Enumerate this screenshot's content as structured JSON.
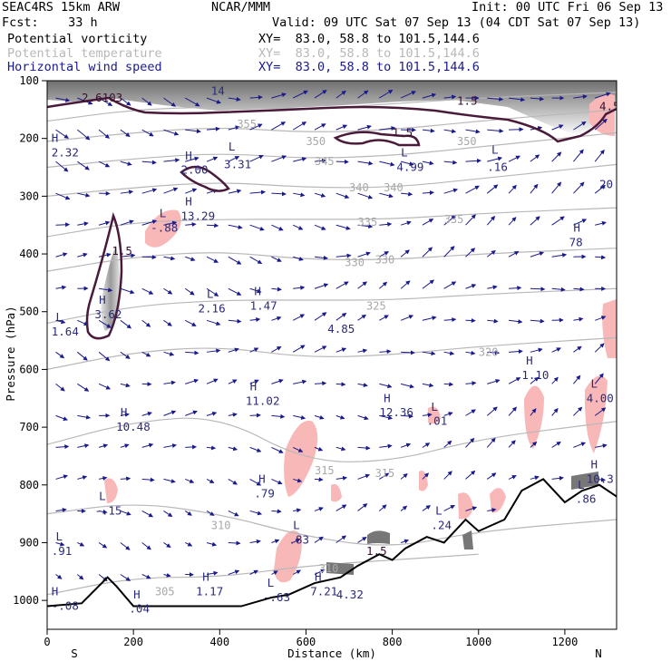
{
  "header": {
    "model": "SEAC4RS 15km ARW",
    "forecast": "Fcst:    33 h",
    "center": "NCAR/MMM",
    "init": "Init: 00 UTC Fri 06 Sep 13",
    "valid": "Valid: 09 UTC Sat 07 Sep 13 (04 CDT Sat 07 Sep 13)",
    "fields": [
      {
        "name": "Potential vorticity",
        "xy": "XY=  83.0, 58.8 to 101.5,144.6",
        "color": "#000000"
      },
      {
        "name": "Potential temperature",
        "xy": "XY=  83.0, 58.8 to 101.5,144.6",
        "color": "#b8b8b8"
      },
      {
        "name": "Horizontal wind speed",
        "xy": "XY=  83.0, 58.8 to 101.5,144.6",
        "color": "#1a1a8c"
      }
    ]
  },
  "colors": {
    "wind_arrow": "#1a1a8c",
    "theta_line": "#b8b8b8",
    "pv_contour": "#4a1a3a",
    "pv_positive_fill": "#f8b8b8",
    "terrain": "#000000",
    "annotation": "#2a2a7a"
  },
  "chart_data": {
    "type": "cross-section",
    "xlabel": "Distance (km)",
    "ylabel": "Pressure (hPa)",
    "xlim": [
      0,
      1320
    ],
    "ylim": [
      1050,
      100
    ],
    "x_ticks": [
      0,
      200,
      400,
      600,
      800,
      1000,
      1200
    ],
    "y_ticks": [
      100,
      200,
      300,
      400,
      500,
      600,
      700,
      800,
      900,
      1000
    ],
    "ends": {
      "left": "S",
      "right": "N"
    },
    "theta_contours": [
      {
        "theta": 355,
        "points": [
          [
            0,
            170
          ],
          [
            200,
            150
          ],
          [
            400,
            145
          ],
          [
            600,
            150
          ],
          [
            800,
            140
          ],
          [
            1000,
            130
          ],
          [
            1320,
            120
          ]
        ]
      },
      {
        "theta": 350,
        "points": [
          [
            0,
            205
          ],
          [
            200,
            190
          ],
          [
            400,
            180
          ],
          [
            600,
            190
          ],
          [
            800,
            185
          ],
          [
            1000,
            170
          ],
          [
            1320,
            150
          ]
        ]
      },
      {
        "theta": 345,
        "points": [
          [
            0,
            250
          ],
          [
            200,
            235
          ],
          [
            400,
            225
          ],
          [
            600,
            235
          ],
          [
            800,
            230
          ],
          [
            1000,
            215
          ],
          [
            1320,
            190
          ]
        ]
      },
      {
        "theta": 340,
        "points": [
          [
            0,
            300
          ],
          [
            200,
            285
          ],
          [
            400,
            275
          ],
          [
            600,
            285
          ],
          [
            800,
            285
          ],
          [
            1000,
            270
          ],
          [
            1320,
            245
          ]
        ]
      },
      {
        "theta": 335,
        "points": [
          [
            0,
            370
          ],
          [
            200,
            345
          ],
          [
            400,
            340
          ],
          [
            600,
            340
          ],
          [
            800,
            340
          ],
          [
            1000,
            330
          ],
          [
            1320,
            320
          ]
        ]
      },
      {
        "theta": 330,
        "points": [
          [
            0,
            430
          ],
          [
            200,
            405
          ],
          [
            400,
            395
          ],
          [
            600,
            410
          ],
          [
            800,
            410
          ],
          [
            1000,
            400
          ],
          [
            1320,
            390
          ]
        ]
      },
      {
        "theta": 325,
        "points": [
          [
            0,
            520
          ],
          [
            200,
            490
          ],
          [
            400,
            480
          ],
          [
            600,
            480
          ],
          [
            800,
            480
          ],
          [
            1000,
            470
          ],
          [
            1320,
            460
          ]
        ]
      },
      {
        "theta": 320,
        "points": [
          [
            0,
            600
          ],
          [
            200,
            570
          ],
          [
            400,
            560
          ],
          [
            600,
            580
          ],
          [
            800,
            575
          ],
          [
            1000,
            560
          ],
          [
            1320,
            545
          ]
        ]
      },
      {
        "theta": 315,
        "points": [
          [
            0,
            730
          ],
          [
            200,
            690
          ],
          [
            400,
            680
          ],
          [
            600,
            760
          ],
          [
            800,
            760
          ],
          [
            1000,
            720
          ],
          [
            1320,
            690
          ]
        ]
      },
      {
        "theta": 310,
        "points": [
          [
            0,
            850
          ],
          [
            200,
            830
          ],
          [
            400,
            850
          ],
          [
            600,
            890
          ],
          [
            800,
            910
          ],
          [
            1000,
            880
          ],
          [
            1320,
            860
          ]
        ]
      },
      {
        "theta": 305,
        "points": [
          [
            0,
            990
          ],
          [
            200,
            960
          ],
          [
            400,
            960
          ],
          [
            600,
            940
          ],
          [
            800,
            930
          ],
          [
            1000,
            920
          ]
        ]
      }
    ],
    "terrain_profile": [
      [
        0,
        1010
      ],
      [
        80,
        1005
      ],
      [
        140,
        960
      ],
      [
        160,
        975
      ],
      [
        200,
        1010
      ],
      [
        300,
        1010
      ],
      [
        450,
        1010
      ],
      [
        520,
        995
      ],
      [
        560,
        990
      ],
      [
        620,
        970
      ],
      [
        680,
        960
      ],
      [
        720,
        940
      ],
      [
        770,
        920
      ],
      [
        800,
        930
      ],
      [
        830,
        910
      ],
      [
        880,
        890
      ],
      [
        920,
        900
      ],
      [
        970,
        860
      ],
      [
        1000,
        880
      ],
      [
        1060,
        860
      ],
      [
        1100,
        810
      ],
      [
        1150,
        790
      ],
      [
        1200,
        830
      ],
      [
        1240,
        810
      ],
      [
        1280,
        800
      ],
      [
        1320,
        820
      ]
    ],
    "labels": [
      {
        "text": "H",
        "x": 10,
        "p": 200,
        "kind": "extremum"
      },
      {
        "text": "2.32",
        "x": 10,
        "p": 225,
        "kind": "value"
      },
      {
        "text": "2.6103",
        "x": 80,
        "p": 130,
        "kind": "pv"
      },
      {
        "text": "14",
        "x": 380,
        "p": 118,
        "kind": "value"
      },
      {
        "text": "355",
        "x": 440,
        "p": 175,
        "kind": "theta"
      },
      {
        "text": "H",
        "x": 320,
        "p": 230,
        "kind": "extremum"
      },
      {
        "text": "2.00",
        "x": 310,
        "p": 255,
        "kind": "value"
      },
      {
        "text": "L",
        "x": 420,
        "p": 215,
        "kind": "extremum"
      },
      {
        "text": "3.31",
        "x": 410,
        "p": 245,
        "kind": "value"
      },
      {
        "text": "L",
        "x": 820,
        "p": 225,
        "kind": "extremum"
      },
      {
        "text": "4.99",
        "x": 810,
        "p": 250,
        "kind": "value"
      },
      {
        "text": "L",
        "x": 1030,
        "p": 220,
        "kind": "extremum"
      },
      {
        "text": ".16",
        "x": 1020,
        "p": 250,
        "kind": "value"
      },
      {
        "text": "H",
        "x": 320,
        "p": 310,
        "kind": "extremum"
      },
      {
        "text": "13.29",
        "x": 310,
        "p": 335,
        "kind": "value"
      },
      {
        "text": "L",
        "x": 260,
        "p": 330,
        "kind": "extremum"
      },
      {
        "text": "-.88",
        "x": 240,
        "p": 355,
        "kind": "value"
      },
      {
        "text": "H",
        "x": 1220,
        "p": 355,
        "kind": "extremum"
      },
      {
        "text": "78",
        "x": 1210,
        "p": 380,
        "kind": "value"
      },
      {
        "text": "1.5",
        "x": 150,
        "p": 395,
        "kind": "pv"
      },
      {
        "text": "H",
        "x": 120,
        "p": 480,
        "kind": "extremum"
      },
      {
        "text": "3.62",
        "x": 110,
        "p": 505,
        "kind": "value"
      },
      {
        "text": "L",
        "x": 370,
        "p": 470,
        "kind": "extremum"
      },
      {
        "text": "2.16",
        "x": 350,
        "p": 495,
        "kind": "value"
      },
      {
        "text": "H",
        "x": 480,
        "p": 465,
        "kind": "extremum"
      },
      {
        "text": "1.47",
        "x": 470,
        "p": 490,
        "kind": "value"
      },
      {
        "text": "4.85",
        "x": 650,
        "p": 530,
        "kind": "value"
      },
      {
        "text": "L",
        "x": 20,
        "p": 510,
        "kind": "extremum"
      },
      {
        "text": "1.64",
        "x": 10,
        "p": 535,
        "kind": "value"
      },
      {
        "text": "H",
        "x": 1110,
        "p": 585,
        "kind": "extremum"
      },
      {
        "text": "1.10",
        "x": 1100,
        "p": 610,
        "kind": "value"
      },
      {
        "text": "L",
        "x": 1260,
        "p": 625,
        "kind": "extremum"
      },
      {
        "text": "4.00",
        "x": 1250,
        "p": 650,
        "kind": "value"
      },
      {
        "text": "H",
        "x": 470,
        "p": 630,
        "kind": "extremum"
      },
      {
        "text": "11.02",
        "x": 460,
        "p": 655,
        "kind": "value"
      },
      {
        "text": "H",
        "x": 780,
        "p": 650,
        "kind": "extremum"
      },
      {
        "text": "12.36",
        "x": 770,
        "p": 675,
        "kind": "value"
      },
      {
        "text": "L",
        "x": 890,
        "p": 665,
        "kind": "extremum"
      },
      {
        "text": ".01",
        "x": 880,
        "p": 690,
        "kind": "value"
      },
      {
        "text": "H",
        "x": 170,
        "p": 675,
        "kind": "extremum"
      },
      {
        "text": "10.48",
        "x": 160,
        "p": 700,
        "kind": "value"
      },
      {
        "text": "315",
        "x": 620,
        "p": 775,
        "kind": "theta"
      },
      {
        "text": "315",
        "x": 760,
        "p": 780,
        "kind": "theta"
      },
      {
        "text": "H",
        "x": 1260,
        "p": 765,
        "kind": "extremum"
      },
      {
        "text": "10.3",
        "x": 1250,
        "p": 790,
        "kind": "value"
      },
      {
        "text": "L",
        "x": 1230,
        "p": 800,
        "kind": "extremum"
      },
      {
        "text": ".86",
        "x": 1225,
        "p": 825,
        "kind": "value"
      },
      {
        "text": "H",
        "x": 490,
        "p": 790,
        "kind": "extremum"
      },
      {
        "text": ".79",
        "x": 480,
        "p": 815,
        "kind": "value"
      },
      {
        "text": "L",
        "x": 120,
        "p": 820,
        "kind": "extremum"
      },
      {
        "text": "-.15",
        "x": 110,
        "p": 845,
        "kind": "value"
      },
      {
        "text": "L",
        "x": 900,
        "p": 845,
        "kind": "extremum"
      },
      {
        "text": ".24",
        "x": 890,
        "p": 870,
        "kind": "value"
      },
      {
        "text": "310",
        "x": 380,
        "p": 870,
        "kind": "theta"
      },
      {
        "text": "L",
        "x": 570,
        "p": 870,
        "kind": "extremum"
      },
      {
        "text": ".83",
        "x": 560,
        "p": 895,
        "kind": "value"
      },
      {
        "text": "1.5",
        "x": 740,
        "p": 915,
        "kind": "pv"
      },
      {
        "text": "L",
        "x": 20,
        "p": 890,
        "kind": "extremum"
      },
      {
        "text": ".91",
        "x": 10,
        "p": 915,
        "kind": "value"
      },
      {
        "text": "310",
        "x": 630,
        "p": 945,
        "kind": "theta"
      },
      {
        "text": "H",
        "x": 360,
        "p": 960,
        "kind": "extremum"
      },
      {
        "text": "1.17",
        "x": 345,
        "p": 985,
        "kind": "value"
      },
      {
        "text": "305",
        "x": 250,
        "p": 985,
        "kind": "theta"
      },
      {
        "text": "H",
        "x": 620,
        "p": 960,
        "kind": "extremum"
      },
      {
        "text": "7.21",
        "x": 610,
        "p": 985,
        "kind": "value"
      },
      {
        "text": "4.32",
        "x": 670,
        "p": 990,
        "kind": "value"
      },
      {
        "text": "L",
        "x": 510,
        "p": 970,
        "kind": "extremum"
      },
      {
        "text": "-.63",
        "x": 500,
        "p": 995,
        "kind": "value"
      },
      {
        "text": "H",
        "x": 200,
        "p": 990,
        "kind": "extremum"
      },
      {
        "text": ".04",
        "x": 190,
        "p": 1015,
        "kind": "value"
      },
      {
        "text": "H",
        "x": 10,
        "p": 985,
        "kind": "extremum"
      },
      {
        "text": "-.08",
        "x": 10,
        "p": 1010,
        "kind": "value"
      },
      {
        "text": "1.5",
        "x": 950,
        "p": 135,
        "kind": "pv"
      },
      {
        "text": "1.5",
        "x": 800,
        "p": 190,
        "kind": "pv"
      },
      {
        "text": "350",
        "x": 600,
        "p": 205,
        "kind": "theta"
      },
      {
        "text": "350",
        "x": 950,
        "p": 205,
        "kind": "theta"
      },
      {
        "text": "345",
        "x": 620,
        "p": 240,
        "kind": "theta"
      },
      {
        "text": "340",
        "x": 700,
        "p": 285,
        "kind": "theta"
      },
      {
        "text": "340",
        "x": 780,
        "p": 285,
        "kind": "theta"
      },
      {
        "text": "335",
        "x": 720,
        "p": 345,
        "kind": "theta"
      },
      {
        "text": "335",
        "x": 920,
        "p": 340,
        "kind": "theta"
      },
      {
        "text": "330",
        "x": 690,
        "p": 415,
        "kind": "theta"
      },
      {
        "text": "330",
        "x": 760,
        "p": 410,
        "kind": "theta"
      },
      {
        "text": "325",
        "x": 740,
        "p": 490,
        "kind": "theta"
      },
      {
        "text": "320",
        "x": 1000,
        "p": 570,
        "kind": "theta"
      },
      {
        "text": "20",
        "x": 1280,
        "p": 280,
        "kind": "value"
      },
      {
        "text": "4.5",
        "x": 1280,
        "p": 145,
        "kind": "pv"
      }
    ]
  }
}
